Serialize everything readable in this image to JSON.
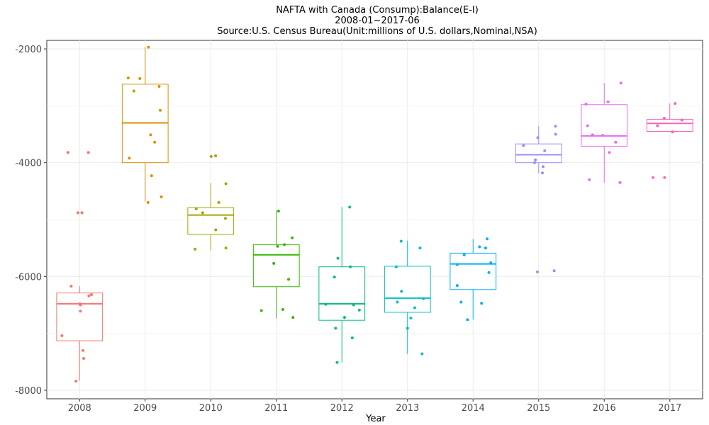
{
  "chart_data": {
    "type": "box",
    "title_lines": [
      "NAFTA with Canada (Consump):Balance(E-I)",
      "2008-01~2017-06",
      "Source:U.S. Census Bureau(Unit:millions of U.S. dollars,Nominal,NSA)"
    ],
    "xlabel": "Year",
    "ylabel": "",
    "ylim": [
      -8150,
      -1850
    ],
    "yticks": [
      -8000,
      -6000,
      -4000,
      -2000
    ],
    "grid": true,
    "legend": "none",
    "categories": [
      "2008",
      "2009",
      "2010",
      "2011",
      "2012",
      "2013",
      "2014",
      "2015",
      "2016",
      "2017"
    ],
    "colors": [
      "#F8766D",
      "#D89000",
      "#A3A500",
      "#39B600",
      "#00BF7D",
      "#00BFC4",
      "#00B0F6",
      "#9590FF",
      "#E76BF3",
      "#FF62BC"
    ],
    "boxes": [
      {
        "category": "2008",
        "lower_whisker": -7830,
        "q1": -7130,
        "median": -6480,
        "q3": -6290,
        "upper_whisker": -6170,
        "points": [
          -3820,
          -3820,
          -4880,
          -4880,
          -6170,
          -6320,
          -6340,
          -6480,
          -6500,
          -6610,
          -7040,
          -7300,
          -7440,
          -7840
        ]
      },
      {
        "category": "2009",
        "lower_whisker": -4680,
        "q1": -4000,
        "median": -3300,
        "q3": -2620,
        "upper_whisker": -1970,
        "points": [
          -1970,
          -2510,
          -2520,
          -2660,
          -2740,
          -3080,
          -3510,
          -3640,
          -3920,
          -4230,
          -4600,
          -4700
        ]
      },
      {
        "category": "2010",
        "lower_whisker": -5540,
        "q1": -5260,
        "median": -4920,
        "q3": -4790,
        "upper_whisker": -4360,
        "points": [
          -3880,
          -3890,
          -4370,
          -4700,
          -4810,
          -4880,
          -4980,
          -5180,
          -5500,
          -5520
        ]
      },
      {
        "category": "2011",
        "lower_whisker": -6740,
        "q1": -6180,
        "median": -5620,
        "q3": -5440,
        "upper_whisker": -4840,
        "points": [
          -4850,
          -5320,
          -5440,
          -5470,
          -5770,
          -6050,
          -6580,
          -6600,
          -6720
        ]
      },
      {
        "category": "2012",
        "lower_whisker": -7510,
        "q1": -6770,
        "median": -6480,
        "q3": -5830,
        "upper_whisker": -4780,
        "points": [
          -4780,
          -5680,
          -5830,
          -6010,
          -6490,
          -6500,
          -6590,
          -6720,
          -6910,
          -7080,
          -7510
        ]
      },
      {
        "category": "2013",
        "lower_whisker": -7360,
        "q1": -6630,
        "median": -6380,
        "q3": -5820,
        "upper_whisker": -5370,
        "points": [
          -5380,
          -5500,
          -5830,
          -6260,
          -6390,
          -6450,
          -6550,
          -6730,
          -6910,
          -7360
        ]
      },
      {
        "category": "2014",
        "lower_whisker": -6760,
        "q1": -6230,
        "median": -5780,
        "q3": -5590,
        "upper_whisker": -5340,
        "points": [
          -5340,
          -5480,
          -5500,
          -5620,
          -5760,
          -5790,
          -5930,
          -6160,
          -6450,
          -6470,
          -6760
        ]
      },
      {
        "category": "2015",
        "lower_whisker": -4180,
        "q1": -4000,
        "median": -3860,
        "q3": -3670,
        "upper_whisker": -3360,
        "points": [
          -3360,
          -3500,
          -3560,
          -3700,
          -3790,
          -3950,
          -4000,
          -4070,
          -4180,
          -5900,
          -5920
        ]
      },
      {
        "category": "2016",
        "lower_whisker": -4350,
        "q1": -3710,
        "median": -3530,
        "q3": -2980,
        "upper_whisker": -2600,
        "points": [
          -2600,
          -2930,
          -2970,
          -3350,
          -3510,
          -3520,
          -3640,
          -3820,
          -4300,
          -4350
        ]
      },
      {
        "category": "2017",
        "lower_whisker": -3450,
        "q1": -3450,
        "median": -3310,
        "q3": -3240,
        "upper_whisker": -2960,
        "points": [
          -2960,
          -3220,
          -3250,
          -3350,
          -3460,
          -4260,
          -4260
        ]
      }
    ]
  }
}
